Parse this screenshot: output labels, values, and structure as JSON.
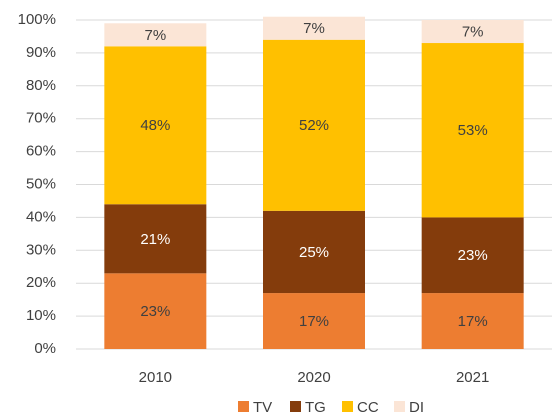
{
  "chart_data": {
    "type": "stacked_bar",
    "categories": [
      "2010",
      "2020",
      "2021"
    ],
    "series": [
      {
        "name": "TV",
        "color": "#ED7D31",
        "values": [
          23,
          17,
          17
        ],
        "value_labels": [
          "23%",
          "17%",
          "17%"
        ]
      },
      {
        "name": "TG",
        "color": "#843C0C",
        "values": [
          21,
          25,
          23
        ],
        "value_labels": [
          "21%",
          "25%",
          "23%"
        ]
      },
      {
        "name": "CC",
        "color": "#FFC000",
        "values": [
          48,
          52,
          53
        ],
        "value_labels": [
          "48%",
          "52%",
          "53%"
        ]
      },
      {
        "name": "DI",
        "color": "#FBE5D6",
        "values": [
          7,
          7,
          7
        ],
        "value_labels": [
          "7%",
          "7%",
          "7%"
        ]
      }
    ],
    "ylim": [
      0,
      100
    ],
    "yticks": [
      {
        "value": 0,
        "label": "0%"
      },
      {
        "value": 10,
        "label": "10%"
      },
      {
        "value": 20,
        "label": "20%"
      },
      {
        "value": 30,
        "label": "30%"
      },
      {
        "value": 40,
        "label": "40%"
      },
      {
        "value": 50,
        "label": "50%"
      },
      {
        "value": 60,
        "label": "60%"
      },
      {
        "value": 70,
        "label": "70%"
      },
      {
        "value": 80,
        "label": "80%"
      },
      {
        "value": 90,
        "label": "90%"
      },
      {
        "value": 100,
        "label": "100%"
      }
    ],
    "grid": true,
    "legend": "bottom"
  }
}
